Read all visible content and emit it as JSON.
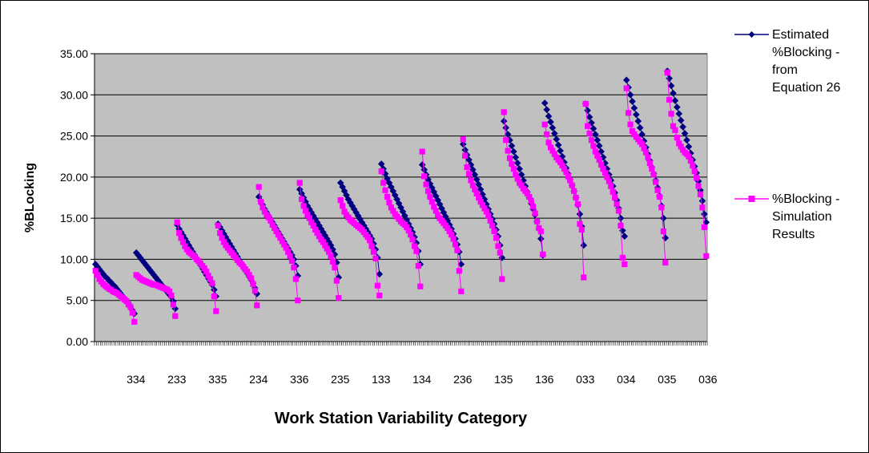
{
  "chart_data": {
    "type": "line",
    "title": "",
    "xlabel": "Work Station Variability Category",
    "ylabel": "%BLocking",
    "ylim": [
      0,
      35
    ],
    "yticks": [
      "0.00",
      "5.00",
      "10.00",
      "15.00",
      "20.00",
      "25.00",
      "30.00",
      "35.00"
    ],
    "grid": true,
    "legend_position": "right",
    "x_labels": [
      "334",
      "233",
      "335",
      "234",
      "336",
      "235",
      "133",
      "134",
      "236",
      "135",
      "136",
      "033",
      "034",
      "035",
      "036"
    ],
    "series": [
      {
        "name": "Estimated %Blocking - from Equation 26",
        "legend_lines": [
          "Estimated",
          "%Blocking -",
          "from",
          "Equation 26"
        ],
        "color": "#000080",
        "marker": "diamond",
        "segments": [
          [
            9.4,
            9.1,
            8.8,
            8.5,
            8.2,
            7.9,
            7.7,
            7.4,
            7.2,
            6.9,
            6.7,
            6.4,
            6.1,
            5.8,
            5.5,
            5.2,
            4.9,
            4.6,
            4.2,
            3.8,
            3.4
          ],
          [
            10.8,
            10.5,
            10.2,
            9.9,
            9.6,
            9.3,
            9.0,
            8.7,
            8.4,
            8.1,
            7.8,
            7.5,
            7.2,
            6.9,
            6.6,
            6.3,
            6.0,
            5.7,
            5.4,
            4.9,
            4.0
          ],
          [
            14.2,
            13.7,
            13.3,
            12.9,
            12.5,
            12.1,
            11.7,
            11.3,
            10.9,
            10.5,
            10.1,
            9.7,
            9.3,
            8.9,
            8.5,
            8.1,
            7.7,
            7.3,
            6.9,
            6.3,
            5.5
          ],
          [
            14.3,
            13.9,
            13.5,
            13.1,
            12.7,
            12.3,
            11.9,
            11.5,
            11.1,
            10.7,
            10.3,
            9.9,
            9.5,
            9.1,
            8.7,
            8.3,
            7.9,
            7.5,
            7.1,
            6.5,
            5.8
          ],
          [
            17.6,
            17.1,
            16.6,
            16.1,
            15.7,
            15.3,
            14.9,
            14.5,
            14.1,
            13.7,
            13.3,
            12.9,
            12.5,
            12.1,
            11.7,
            11.3,
            10.9,
            10.5,
            10.0,
            9.2,
            8.0
          ],
          [
            18.5,
            18.0,
            17.5,
            17.0,
            16.5,
            16.1,
            15.7,
            15.3,
            14.9,
            14.5,
            14.1,
            13.7,
            13.3,
            12.9,
            12.5,
            12.1,
            11.7,
            11.2,
            10.6,
            9.6,
            7.8
          ],
          [
            19.3,
            18.8,
            18.3,
            17.8,
            17.3,
            16.9,
            16.5,
            16.1,
            15.7,
            15.3,
            14.9,
            14.5,
            14.1,
            13.7,
            13.3,
            12.9,
            12.5,
            11.9,
            11.2,
            10.2,
            8.2
          ],
          [
            21.6,
            21.0,
            20.4,
            19.8,
            19.3,
            18.8,
            18.3,
            17.8,
            17.3,
            16.8,
            16.3,
            15.8,
            15.3,
            14.8,
            14.3,
            13.8,
            13.3,
            12.7,
            12.0,
            11.0,
            9.4
          ],
          [
            21.5,
            20.9,
            20.3,
            19.7,
            19.2,
            18.7,
            18.2,
            17.7,
            17.2,
            16.7,
            16.2,
            15.7,
            15.2,
            14.7,
            14.2,
            13.7,
            13.1,
            12.5,
            11.8,
            10.9,
            9.4
          ],
          [
            24.0,
            23.3,
            22.7,
            22.1,
            21.5,
            20.9,
            20.3,
            19.7,
            19.1,
            18.5,
            17.9,
            17.3,
            16.7,
            16.1,
            15.5,
            14.9,
            14.3,
            13.6,
            12.8,
            11.7,
            10.2
          ],
          [
            26.8,
            26.0,
            25.2,
            24.5,
            23.8,
            23.1,
            22.4,
            21.7,
            21.0,
            20.3,
            19.6,
            18.9,
            18.2,
            17.5,
            16.8,
            16.1,
            15.4,
            14.6,
            13.7,
            12.5,
            10.5
          ],
          [
            29.0,
            28.2,
            27.4,
            26.7,
            26.0,
            25.3,
            24.6,
            23.9,
            23.2,
            22.5,
            21.8,
            21.1,
            20.4,
            19.7,
            19.0,
            18.3,
            17.5,
            16.6,
            15.5,
            14.0,
            11.7
          ],
          [
            28.9,
            28.1,
            27.3,
            26.6,
            25.9,
            25.2,
            24.5,
            23.8,
            23.1,
            22.4,
            21.7,
            21.0,
            20.3,
            19.6,
            18.9,
            18.1,
            17.2,
            16.2,
            15.0,
            13.5,
            12.8
          ],
          [
            31.8,
            30.9,
            30.0,
            29.2,
            28.4,
            27.6,
            26.8,
            26.0,
            25.2,
            24.4,
            23.6,
            22.8,
            22.0,
            21.2,
            20.4,
            19.6,
            18.7,
            17.7,
            16.5,
            15.0,
            12.6
          ],
          [
            32.9,
            32.0,
            31.1,
            30.2,
            29.3,
            28.5,
            27.7,
            26.9,
            26.1,
            25.3,
            24.5,
            23.7,
            22.9,
            22.1,
            21.3,
            20.5,
            19.5,
            18.4,
            17.1,
            15.5,
            14.5
          ]
        ]
      },
      {
        "name": "%Blocking - Simulation Results",
        "legend_lines": [
          " %Blocking -",
          "Simulation",
          "Results"
        ],
        "color": "#ff00ff",
        "marker": "square",
        "segments": [
          [
            8.6,
            8.1,
            7.6,
            7.3,
            7.0,
            6.8,
            6.6,
            6.4,
            6.3,
            6.1,
            6.0,
            5.9,
            5.7,
            5.5,
            5.3,
            5.1,
            4.9,
            4.5,
            4.2,
            3.5,
            2.4
          ],
          [
            8.1,
            7.9,
            7.7,
            7.5,
            7.4,
            7.3,
            7.2,
            7.1,
            7.0,
            6.9,
            6.9,
            6.8,
            6.7,
            6.6,
            6.5,
            6.4,
            6.3,
            6.1,
            5.6,
            4.5,
            3.1
          ],
          [
            14.5,
            13.2,
            12.6,
            12.1,
            11.6,
            11.2,
            10.9,
            10.7,
            10.5,
            10.3,
            10.0,
            9.8,
            9.5,
            9.2,
            8.9,
            8.5,
            8.0,
            7.6,
            7.1,
            5.5,
            3.7
          ],
          [
            14.1,
            13.2,
            12.6,
            12.1,
            11.7,
            11.4,
            11.1,
            10.8,
            10.5,
            10.2,
            9.9,
            9.6,
            9.4,
            9.1,
            8.8,
            8.5,
            8.1,
            7.7,
            7.0,
            6.2,
            4.4
          ],
          [
            18.8,
            17.0,
            16.3,
            15.8,
            15.4,
            15.1,
            14.7,
            14.2,
            13.8,
            13.4,
            13.0,
            12.6,
            12.2,
            11.8,
            11.4,
            10.9,
            10.4,
            9.8,
            9.0,
            7.6,
            5.0
          ],
          [
            19.3,
            17.3,
            16.5,
            15.9,
            15.4,
            15.0,
            14.5,
            14.1,
            13.6,
            13.2,
            12.8,
            12.4,
            12.1,
            11.7,
            11.3,
            10.9,
            10.4,
            9.7,
            9.0,
            7.4,
            5.3
          ],
          [
            17.2,
            16.5,
            15.8,
            15.4,
            15.1,
            14.8,
            14.6,
            14.4,
            14.2,
            14.0,
            13.8,
            13.6,
            13.3,
            13.0,
            12.7,
            12.3,
            11.6,
            10.9,
            10.1,
            6.8,
            5.6
          ],
          [
            20.7,
            19.3,
            18.4,
            17.6,
            16.9,
            16.3,
            15.9,
            15.5,
            15.2,
            14.9,
            14.6,
            14.4,
            14.2,
            13.9,
            13.5,
            13.0,
            12.4,
            11.6,
            11.0,
            9.2,
            6.7
          ],
          [
            23.1,
            20.1,
            19.1,
            18.3,
            17.6,
            17.0,
            16.4,
            15.9,
            15.4,
            15.0,
            14.7,
            14.4,
            14.1,
            13.8,
            13.4,
            13.0,
            12.5,
            11.8,
            11.1,
            8.6,
            6.1
          ],
          [
            24.6,
            22.6,
            21.2,
            20.4,
            19.6,
            19.0,
            18.5,
            18.0,
            17.5,
            17.0,
            16.6,
            16.2,
            15.8,
            15.3,
            14.7,
            14.1,
            13.4,
            12.6,
            11.6,
            10.8,
            7.6
          ],
          [
            27.9,
            24.5,
            23.2,
            22.3,
            21.6,
            21.0,
            20.3,
            19.8,
            19.3,
            19.0,
            18.6,
            18.3,
            18.0,
            17.6,
            17.1,
            16.4,
            15.6,
            14.6,
            13.8,
            13.4,
            10.6
          ],
          [
            26.4,
            25.2,
            24.2,
            23.6,
            23.2,
            22.8,
            22.4,
            22.1,
            21.8,
            21.4,
            21.0,
            20.6,
            20.1,
            19.6,
            19.0,
            18.3,
            17.5,
            16.7,
            14.3,
            13.6,
            7.8
          ],
          [
            28.9,
            26.2,
            25.3,
            24.5,
            23.8,
            23.1,
            22.6,
            22.1,
            21.5,
            21.0,
            20.5,
            20.0,
            19.5,
            18.9,
            18.2,
            17.5,
            16.7,
            15.9,
            14.1,
            10.2,
            9.4
          ],
          [
            30.8,
            27.8,
            26.4,
            25.6,
            25.2,
            24.9,
            24.6,
            24.3,
            24.0,
            23.5,
            23.0,
            22.4,
            21.7,
            21.0,
            20.3,
            19.4,
            18.4,
            17.6,
            16.3,
            13.4,
            9.6
          ],
          [
            32.7,
            29.4,
            27.7,
            26.2,
            25.7,
            24.8,
            24.1,
            23.7,
            23.3,
            23.0,
            22.8,
            22.5,
            22.0,
            21.4,
            20.7,
            19.9,
            18.9,
            17.9,
            16.3,
            13.9,
            10.4
          ]
        ]
      }
    ]
  }
}
